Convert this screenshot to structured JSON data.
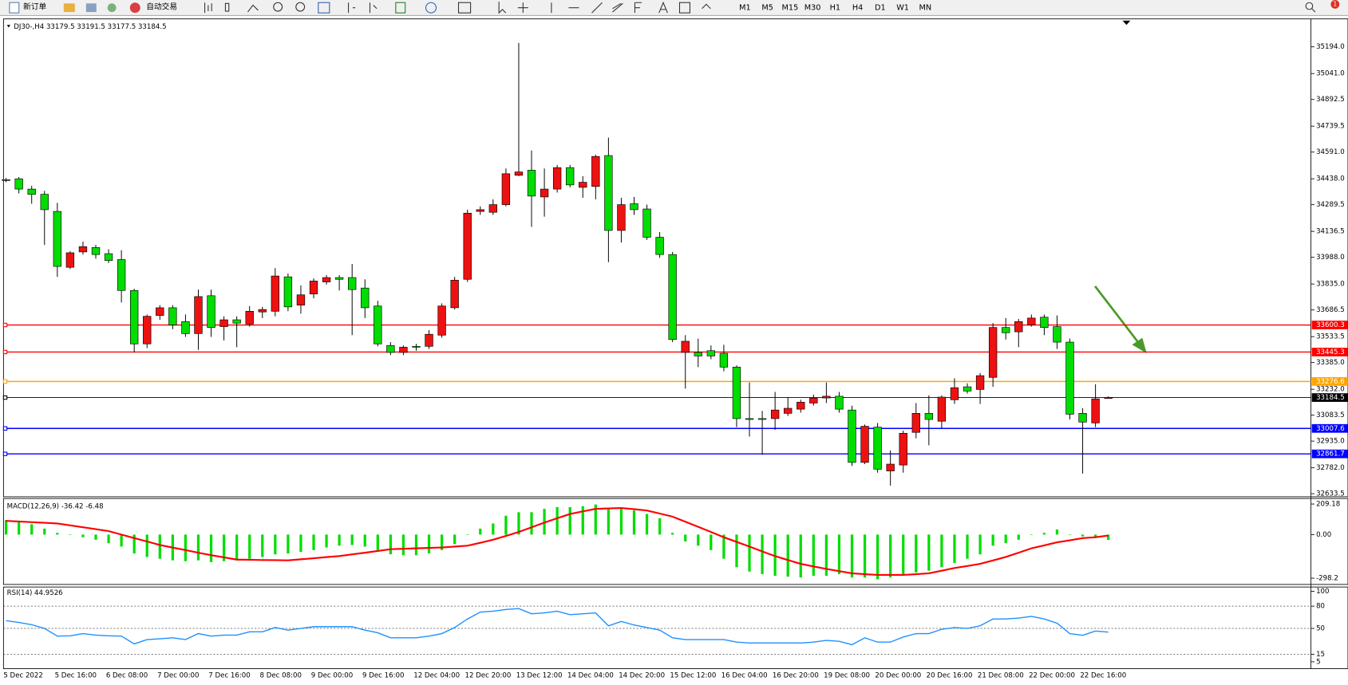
{
  "toolbar": {
    "new_order": "新订单",
    "auto_trading": "自动交易",
    "timeframes": [
      "M1",
      "M5",
      "M15",
      "M30",
      "H1",
      "H4",
      "D1",
      "W1",
      "MN"
    ],
    "notifications": "1"
  },
  "chart_data": [
    {
      "type": "candlestick",
      "title": "DJ30-,H4  33179.5 33191.5 33177.5 33184.5",
      "categories": [
        "5 Dec 2022",
        null,
        null,
        null,
        "5 Dec 16:00",
        null,
        null,
        null,
        "6 Dec 08:00",
        null,
        null,
        null,
        "7 Dec 00:00",
        null,
        null,
        null,
        "7 Dec 16:00",
        null,
        null,
        null,
        "8 Dec 08:00",
        null,
        null,
        null,
        "9 Dec 00:00",
        null,
        null,
        null,
        "9 Dec 16:00",
        null,
        null,
        null,
        "12 Dec 04:00",
        null,
        null,
        null,
        "12 Dec 20:00",
        null,
        null,
        null,
        "13 Dec 12:00",
        null,
        null,
        null,
        "14 Dec 04:00",
        null,
        null,
        null,
        "14 Dec 20:00",
        null,
        null,
        null,
        "15 Dec 12:00",
        null,
        null,
        null,
        "16 Dec 04:00",
        null,
        null,
        null,
        "16 Dec 20:00",
        null,
        null,
        null,
        "19 Dec 08:00",
        null,
        null,
        null,
        "20 Dec 00:00",
        null,
        null,
        null,
        "20 Dec 16:00",
        null,
        null,
        null,
        "21 Dec 08:00",
        null,
        null,
        null,
        "22 Dec 00:00",
        null,
        null,
        null,
        "22 Dec 16:00",
        null,
        null
      ],
      "open": [
        34433,
        34438,
        34379,
        34349,
        34251,
        33931,
        34019,
        34044,
        34009,
        33975,
        33798,
        33492,
        33655,
        33699,
        33620,
        33551,
        33768,
        33591,
        33630,
        33606,
        33675,
        33679,
        33876,
        33714,
        33778,
        33847,
        33872,
        33872,
        33812,
        33709,
        33483,
        33443,
        33478,
        33478,
        33542,
        33699,
        33862,
        34251,
        34246,
        34290,
        34458,
        34487,
        34334,
        34379,
        34502,
        34389,
        34394,
        34571,
        34142,
        34295,
        34265,
        34103,
        34004,
        33443,
        33443,
        33453,
        33438,
        33359,
        33064,
        33064,
        33064,
        33094,
        33118,
        33153,
        33182,
        33192,
        33113,
        32813,
        33015,
        32764,
        32798,
        32985,
        33094,
        33049,
        33172,
        33246,
        33231,
        33300,
        33586,
        33561,
        33601,
        33645,
        33591,
        33502,
        33094,
        33039,
        33179.5
      ],
      "high": [
        34443,
        34448,
        34398,
        34369,
        34300,
        34024,
        34078,
        34059,
        34034,
        34029,
        33808,
        33660,
        33714,
        33714,
        33660,
        33803,
        33803,
        33650,
        33650,
        33709,
        33704,
        33926,
        33896,
        33827,
        33867,
        33886,
        33886,
        33950,
        33862,
        33739,
        33502,
        33483,
        33492,
        33571,
        33724,
        33876,
        34261,
        34280,
        34320,
        34497,
        35216,
        34600,
        34497,
        34517,
        34517,
        34453,
        34576,
        34674,
        34329,
        34334,
        34290,
        34133,
        34019,
        33542,
        33522,
        33483,
        33487,
        33369,
        33271,
        33108,
        33217,
        33187,
        33172,
        33202,
        33271,
        33217,
        33138,
        33030,
        33039,
        32882,
        32995,
        33153,
        33197,
        33197,
        33295,
        33266,
        33325,
        33611,
        33640,
        33635,
        33660,
        33660,
        33655,
        33522,
        33123,
        33261,
        33191.5
      ],
      "low": [
        34418,
        34354,
        34295,
        34059,
        33876,
        33921,
        34004,
        33980,
        33955,
        33729,
        33443,
        33468,
        33630,
        33576,
        33532,
        33458,
        33532,
        33512,
        33473,
        33591,
        33640,
        33650,
        33679,
        33665,
        33753,
        33832,
        33798,
        33542,
        33640,
        33478,
        33428,
        33428,
        33453,
        33463,
        33527,
        33689,
        33847,
        34231,
        34231,
        34280,
        34453,
        34162,
        34221,
        34359,
        34389,
        34329,
        34320,
        33960,
        34073,
        34231,
        34088,
        33985,
        33502,
        33236,
        33359,
        33404,
        33335,
        33015,
        32961,
        32857,
        33000,
        33079,
        33098,
        33138,
        33153,
        33098,
        32793,
        32803,
        32754,
        32680,
        32754,
        32951,
        32911,
        33010,
        33148,
        33207,
        33148,
        33246,
        33517,
        33473,
        33591,
        33542,
        33463,
        33059,
        32749,
        33015,
        33177.5
      ],
      "close": [
        34428,
        34379,
        34349,
        34261,
        33936,
        34014,
        34049,
        34004,
        33970,
        33798,
        33492,
        33650,
        33699,
        33601,
        33551,
        33763,
        33586,
        33630,
        33611,
        33679,
        33689,
        33881,
        33704,
        33773,
        33852,
        33872,
        33862,
        33803,
        33699,
        33492,
        33443,
        33473,
        33473,
        33547,
        33709,
        33857,
        34241,
        34261,
        34290,
        34467,
        34477,
        34339,
        34379,
        34502,
        34403,
        34418,
        34566,
        34142,
        34290,
        34261,
        34103,
        34004,
        33517,
        33507,
        33423,
        33423,
        33359,
        33064,
        33059,
        33059,
        33113,
        33123,
        33158,
        33182,
        33192,
        33118,
        32813,
        33020,
        32774,
        32803,
        32980,
        33094,
        33059,
        33187,
        33241,
        33222,
        33310,
        33586,
        33556,
        33620,
        33640,
        33586,
        33502,
        33089,
        33044,
        33177,
        33184.5
      ],
      "up_color": "#ee1111",
      "down_color": "#00dd00",
      "ylim": [
        32616,
        35354
      ],
      "yticks": [
        {
          "value": 35194,
          "label": "35194.0"
        },
        {
          "value": 35041,
          "label": "35041.0"
        },
        34892.5,
        34739.5,
        {
          "value": 34591,
          "label": "34591.0"
        },
        {
          "value": 34438,
          "label": "34438.0"
        },
        34289.5,
        34136.5,
        {
          "value": 33988,
          "label": "33988.0"
        },
        {
          "value": 33835,
          "label": "33835.0"
        },
        33686.5,
        33533.5,
        {
          "value": 33385,
          "label": "33385.0"
        },
        {
          "value": 33232,
          "label": "33232.0"
        },
        33083.5,
        {
          "value": 32935,
          "label": "32935.0"
        },
        {
          "value": 32782,
          "label": "32782.0"
        },
        32633.5
      ],
      "hlines": [
        {
          "value": 33600.3,
          "color": "#ff0000"
        },
        {
          "value": 33445.3,
          "color": "#ff0000"
        },
        {
          "value": 33276.6,
          "color": "#ffa500"
        },
        {
          "value": 33184.5,
          "color": "#000000"
        },
        {
          "value": 33007.6,
          "color": "#0000ff"
        },
        {
          "value": 32861.7,
          "color": "#0000ff"
        }
      ]
    },
    {
      "type": "macd",
      "title": "MACD(12,26,9) -36.42 -6.48",
      "series": [
        {
          "name": "MACD",
          "color": "#00dd00",
          "values": [
            100,
            88,
            71,
            41,
            12,
            0,
            -18,
            -35,
            -59,
            -82,
            -129,
            -153,
            -165,
            -176,
            -182,
            -176,
            -188,
            -182,
            -176,
            -165,
            -153,
            -135,
            -129,
            -118,
            -106,
            -88,
            -76,
            -71,
            -82,
            -106,
            -135,
            -141,
            -141,
            -129,
            -106,
            -65,
            0,
            41,
            76,
            129,
            153,
            153,
            176,
            188,
            188,
            194,
            206,
            176,
            176,
            165,
            141,
            112,
            12,
            -47,
            -76,
            -106,
            -165,
            -223,
            -253,
            -270,
            -282,
            -288,
            -294,
            -282,
            -282,
            -270,
            -294,
            -294,
            -306,
            -294,
            -282,
            -259,
            -247,
            -223,
            -194,
            -165,
            -135,
            -76,
            -59,
            -35,
            0,
            12,
            35,
            0,
            -12,
            -24,
            -36.42
          ]
        },
        {
          "name": "Signal",
          "color": "#ff0000",
          "values": [
            94,
            90,
            85,
            81,
            76,
            63,
            50,
            37,
            24,
            0,
            -24,
            -47,
            -71,
            -89,
            -106,
            -124,
            -141,
            -156,
            -171,
            -172,
            -174,
            -175,
            -176,
            -169,
            -162,
            -154,
            -147,
            -135,
            -124,
            -112,
            -100,
            -97,
            -94,
            -91,
            -88,
            -82,
            -76,
            -56,
            -35,
            -9,
            18,
            50,
            82,
            112,
            141,
            159,
            176,
            179,
            182,
            174,
            165,
            144,
            123,
            88,
            53,
            18,
            -18,
            -50,
            -82,
            -115,
            -147,
            -174,
            -200,
            -218,
            -235,
            -250,
            -265,
            -271,
            -276,
            -276,
            -276,
            -271,
            -265,
            -247,
            -229,
            -215,
            -200,
            -177,
            -153,
            -124,
            -94,
            -74,
            -53,
            -39,
            -24,
            -18,
            -6.48
          ]
        }
      ],
      "ylim": [
        -341,
        247
      ],
      "yticks": [
        209.18,
        {
          "value": 0,
          "label": "0.00"
        },
        -298.2
      ]
    },
    {
      "type": "line",
      "title": "RSI(14) 44.9526",
      "series": [
        {
          "name": "RSI",
          "color": "#1e90ff",
          "values": [
            60.4,
            58,
            55,
            50,
            39.6,
            40,
            43,
            41,
            40,
            39.6,
            29.1,
            34.9,
            36,
            37.3,
            34.9,
            43,
            39.6,
            41,
            41,
            45.4,
            45.4,
            51.2,
            47.7,
            50,
            52.3,
            52.3,
            52.3,
            52.3,
            47.7,
            44.2,
            37.3,
            37.3,
            37.3,
            39.6,
            43,
            51.2,
            62.7,
            72,
            73.2,
            75.5,
            76.7,
            69.7,
            70.9,
            73.2,
            68.5,
            69.7,
            70.9,
            53.5,
            59.3,
            54.6,
            51.2,
            47.7,
            37.3,
            34.9,
            34.9,
            34.9,
            34.9,
            31.5,
            30.3,
            30.3,
            30.3,
            30.3,
            30.3,
            31.5,
            33.8,
            32.6,
            28,
            37.3,
            31.5,
            31.5,
            38.4,
            43,
            43,
            48.8,
            51.2,
            50,
            53.5,
            62.7,
            62.7,
            63.9,
            66.2,
            62.7,
            57,
            43,
            40.7,
            46.5,
            44.9526
          ]
        }
      ],
      "ylim": [
        -4.3,
        105.8
      ],
      "yticks": [
        100,
        80,
        50,
        15,
        5
      ],
      "levels": [
        80,
        50,
        15
      ]
    }
  ]
}
